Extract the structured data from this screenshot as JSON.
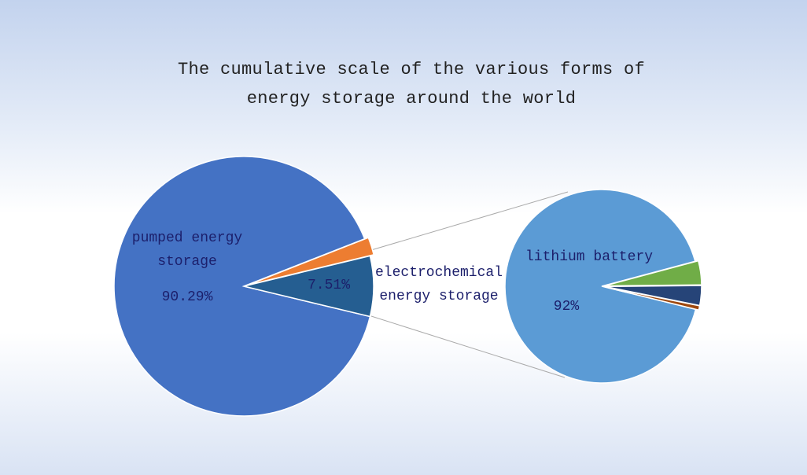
{
  "chart_data": [
    {
      "type": "pie",
      "title": "The cumulative scale of the various forms of energy storage around the world",
      "categories": [
        "pumped energy storage",
        null,
        "electrochemical energy storage"
      ],
      "values": [
        90.29,
        2.2,
        7.51
      ],
      "value_labels": [
        "90.29%",
        null,
        "7.51%"
      ],
      "colors": [
        "#4472c4",
        "#ed7d31",
        "#255e91"
      ]
    },
    {
      "type": "pie",
      "categories": [
        "lithium battery",
        null,
        null,
        null
      ],
      "values": [
        92,
        4,
        3.3,
        0.7
      ],
      "value_labels": [
        "92%",
        null,
        null,
        null
      ],
      "colors": [
        "#5b9bd5",
        "#70ad47",
        "#264478",
        "#9e480e"
      ]
    }
  ]
}
